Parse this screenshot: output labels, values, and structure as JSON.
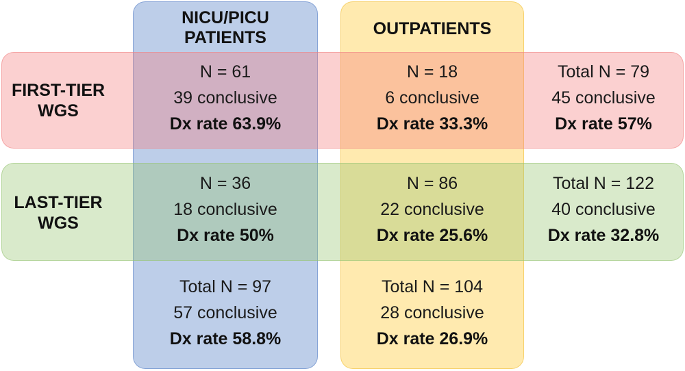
{
  "columns": {
    "nicu": {
      "header_line1": "NICU/PICU",
      "header_line2": "PATIENTS"
    },
    "outpatients": {
      "header": "OUTPATIENTS"
    }
  },
  "rows": {
    "first_tier": {
      "label_line1": "FIRST-TIER",
      "label_line2": "WGS"
    },
    "last_tier": {
      "label_line1": "LAST-TIER",
      "label_line2": "WGS"
    }
  },
  "cells": {
    "first_nicu": {
      "n": "N = 61",
      "conclusive": "39 conclusive",
      "rate": "Dx rate 63.9%"
    },
    "first_out": {
      "n": "N = 18",
      "conclusive": "6 conclusive",
      "rate": "Dx rate 33.3%"
    },
    "first_total": {
      "n": "Total N = 79",
      "conclusive": "45 conclusive",
      "rate": "Dx rate 57%"
    },
    "last_nicu": {
      "n": "N = 36",
      "conclusive": "18 conclusive",
      "rate": "Dx rate 50%"
    },
    "last_out": {
      "n": "N = 86",
      "conclusive": "22 conclusive",
      "rate": "Dx rate 25.6%"
    },
    "last_total": {
      "n": "Total N = 122",
      "conclusive": "40 conclusive",
      "rate": "Dx rate 32.8%"
    },
    "total_nicu": {
      "n": "Total N = 97",
      "conclusive": "57 conclusive",
      "rate": "Dx rate 58.8%"
    },
    "total_out": {
      "n": "Total N = 104",
      "conclusive": "28 conclusive",
      "rate": "Dx rate 26.9%"
    }
  },
  "colors": {
    "nicu_band": "#7598d1",
    "outpatients_band": "#ffd666",
    "first_tier_band": "#f37d7d",
    "last_tier_band": "#96c670"
  }
}
